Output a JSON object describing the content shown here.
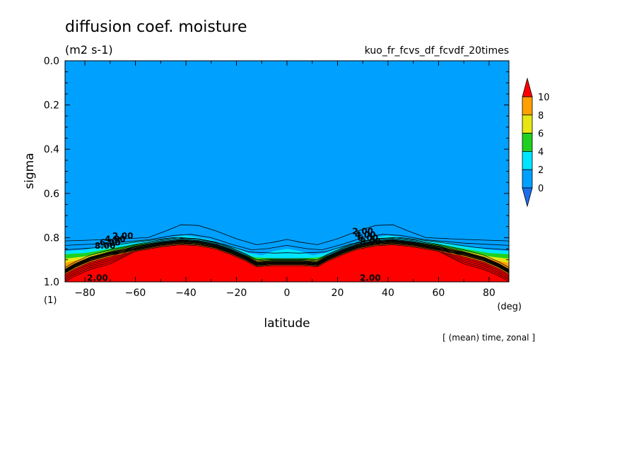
{
  "chart_data": {
    "type": "contour",
    "title": "diffusion coef. moisture",
    "units": "(m2 s-1)",
    "run_label": "kuo_fr_fcvs_df_fcvdf_20times",
    "xlabel": "latitude",
    "x_unit": "(deg)",
    "ylabel": "sigma",
    "y_unit": "(1)",
    "footer": "[ (mean) time, zonal ]",
    "xlim": [
      -87.86,
      87.86
    ],
    "ylim": [
      1.0,
      0.0
    ],
    "x_ticks": [
      -80,
      -60,
      -40,
      -20,
      0,
      20,
      40,
      60,
      80
    ],
    "x_tick_labels": [
      "−80",
      "−60",
      "−40",
      "−20",
      "0",
      "20",
      "40",
      "60",
      "80"
    ],
    "y_ticks": [
      0.0,
      0.2,
      0.4,
      0.6,
      0.8,
      1.0
    ],
    "y_tick_labels": [
      "0.0",
      "0.2",
      "0.4",
      "0.6",
      "0.8",
      "1.0"
    ],
    "colorbar": {
      "levels": [
        0,
        2,
        4,
        6,
        8,
        10
      ],
      "labels": [
        "0",
        "2",
        "4",
        "6",
        "8",
        "10"
      ],
      "colors": [
        "#1e6eeb",
        "#00a0ff",
        "#00e5ff",
        "#20d020",
        "#e6e614",
        "#ffa000",
        "#ff0000"
      ]
    },
    "contour_labels": [
      "2.00",
      "4.00",
      "6.00",
      "8.00",
      "2.00",
      "4.00",
      "6.00",
      "8.00",
      "2.00",
      "2.00"
    ],
    "background_color": "#00a0ff",
    "high_value_color": "#ff0000",
    "grid": false
  }
}
